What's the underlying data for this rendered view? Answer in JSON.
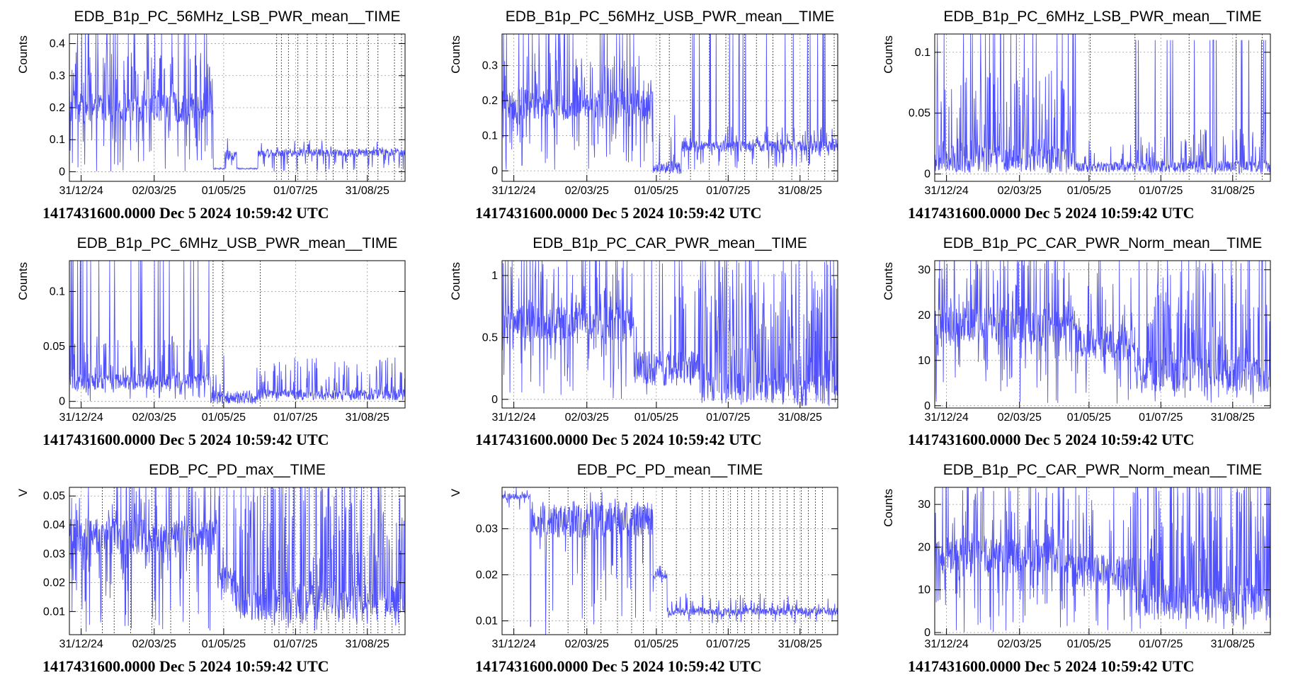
{
  "caption": "1417431600.0000 Dec 5 2024 10:59:42 UTC",
  "date_ticks": [
    "31/12/24",
    "02/03/25",
    "01/05/25",
    "01/07/25",
    "31/08/25"
  ],
  "colors": {
    "series": "#5050ff",
    "grid": "#9a9a9a",
    "vline": "#000000"
  },
  "chart_data": [
    {
      "type": "line",
      "title": "EDB_B1p_PC_56MHz_LSB_PWR_mean__TIME",
      "ylabel": "Counts",
      "ylim": [
        -0.03,
        0.43
      ],
      "yticks": [
        0,
        0.1,
        0.2,
        0.3,
        0.4
      ],
      "ytick_labels": [
        "0",
        "0.1",
        "0.2",
        "0.3",
        "0.4"
      ],
      "x_range_days": [
        -10,
        275
      ],
      "segments": [
        {
          "x": [
            -10,
            112
          ],
          "base": 0.2,
          "lo": 0.0,
          "hi": 0.38,
          "spike": 0.43,
          "dense": 0.8
        },
        {
          "x": [
            112,
            122
          ],
          "base": 0.01,
          "lo": 0.0,
          "hi": 0.02,
          "spike": 0.0,
          "dense": 0.0
        },
        {
          "x": [
            122,
            132
          ],
          "base": 0.05,
          "lo": 0.0,
          "hi": 0.14,
          "spike": 0.0,
          "dense": 0.3
        },
        {
          "x": [
            132,
            150
          ],
          "base": 0.01,
          "lo": 0.0,
          "hi": 0.02,
          "spike": 0.0,
          "dense": 0.0
        },
        {
          "x": [
            150,
            275
          ],
          "base": 0.06,
          "lo": 0.0,
          "hi": 0.1,
          "spike": 0.0,
          "dense": 0.5
        }
      ],
      "vlines_days": [
        166,
        170,
        176,
        184,
        192,
        200,
        208,
        214,
        226,
        234,
        244,
        252,
        266,
        272
      ]
    },
    {
      "type": "line",
      "title": "EDB_B1p_PC_56MHz_USB_PWR_mean__TIME",
      "ylabel": "Counts",
      "ylim": [
        -0.03,
        0.39
      ],
      "yticks": [
        0,
        0.1,
        0.2,
        0.3
      ],
      "ytick_labels": [
        "0",
        "0.1",
        "0.2",
        "0.3"
      ],
      "x_range_days": [
        -10,
        275
      ],
      "segments": [
        {
          "x": [
            -10,
            118
          ],
          "base": 0.19,
          "lo": 0.0,
          "hi": 0.34,
          "spike": 0.39,
          "dense": 0.8
        },
        {
          "x": [
            118,
            142
          ],
          "base": 0.01,
          "lo": 0.0,
          "hi": 0.16,
          "spike": 0.0,
          "dense": 0.2
        },
        {
          "x": [
            142,
            275
          ],
          "base": 0.07,
          "lo": 0.0,
          "hi": 0.13,
          "spike": 0.39,
          "dense": 0.6
        }
      ],
      "vlines_days": [
        124,
        132,
        150,
        166,
        180,
        196,
        206,
        220,
        236,
        250,
        264,
        272
      ]
    },
    {
      "type": "line",
      "title": "EDB_B1p_PC_6MHz_LSB_PWR_mean__TIME",
      "ylabel": "Counts",
      "ylim": [
        -0.006,
        0.115
      ],
      "yticks": [
        0,
        0.05,
        0.1
      ],
      "ytick_labels": [
        "0",
        "0.05",
        "0.1"
      ],
      "x_range_days": [
        -10,
        275
      ],
      "segments": [
        {
          "x": [
            -10,
            110
          ],
          "base": 0.012,
          "lo": 0.0,
          "hi": 0.09,
          "spike": 0.115,
          "dense": 0.7
        },
        {
          "x": [
            110,
            160
          ],
          "base": 0.006,
          "lo": 0.0,
          "hi": 0.035,
          "spike": 0.0,
          "dense": 0.3
        },
        {
          "x": [
            160,
            275
          ],
          "base": 0.006,
          "lo": 0.0,
          "hi": 0.04,
          "spike": 0.11,
          "dense": 0.6
        }
      ],
      "vlines_days": [
        122,
        160,
        206,
        246,
        268
      ]
    },
    {
      "type": "line",
      "title": "EDB_B1p_PC_6MHz_USB_PWR_mean__TIME",
      "ylabel": "Counts",
      "ylim": [
        -0.006,
        0.128
      ],
      "yticks": [
        0,
        0.05,
        0.1
      ],
      "ytick_labels": [
        "0",
        "0.05",
        "0.1"
      ],
      "x_range_days": [
        -10,
        275
      ],
      "segments": [
        {
          "x": [
            -10,
            110
          ],
          "base": 0.018,
          "lo": 0.0,
          "hi": 0.06,
          "spike": 0.128,
          "dense": 0.7
        },
        {
          "x": [
            110,
            150
          ],
          "base": 0.004,
          "lo": 0.0,
          "hi": 0.05,
          "spike": 0.0,
          "dense": 0.2
        },
        {
          "x": [
            150,
            275
          ],
          "base": 0.006,
          "lo": 0.0,
          "hi": 0.04,
          "spike": 0.0,
          "dense": 0.5
        }
      ],
      "vlines_days": [
        112,
        120,
        152
      ]
    },
    {
      "type": "line",
      "title": "EDB_B1p_PC_CAR_PWR_mean__TIME",
      "ylabel": "Counts",
      "ylim": [
        -0.07,
        1.12
      ],
      "yticks": [
        0,
        0.5,
        1
      ],
      "ytick_labels": [
        "0",
        "0.5",
        "1"
      ],
      "x_range_days": [
        -10,
        275
      ],
      "segments": [
        {
          "x": [
            -10,
            102
          ],
          "base": 0.62,
          "lo": 0.0,
          "hi": 1.12,
          "spike": 1.12,
          "dense": 0.8
        },
        {
          "x": [
            102,
            158
          ],
          "base": 0.25,
          "lo": 0.0,
          "hi": 1.12,
          "spike": 1.12,
          "dense": 0.4
        },
        {
          "x": [
            158,
            275
          ],
          "base": 0.08,
          "lo": 0.0,
          "hi": 1.12,
          "spike": 1.12,
          "dense": 0.9
        }
      ],
      "vlines_days": []
    },
    {
      "type": "line",
      "title": "EDB_B1p_PC_CAR_PWR_Norm_mean__TIME",
      "ylabel": "Counts",
      "ylim": [
        -0.5,
        32
      ],
      "yticks": [
        0,
        10,
        20,
        30
      ],
      "ytick_labels": [
        "0",
        "10",
        "20",
        "30"
      ],
      "x_range_days": [
        -10,
        275
      ],
      "segments": [
        {
          "x": [
            -10,
            110
          ],
          "base": 18,
          "lo": 0.0,
          "hi": 32,
          "spike": 32,
          "dense": 0.8
        },
        {
          "x": [
            110,
            160
          ],
          "base": 14,
          "lo": 0.0,
          "hi": 32,
          "spike": 32,
          "dense": 0.4
        },
        {
          "x": [
            160,
            275
          ],
          "base": 7,
          "lo": 0.0,
          "hi": 32,
          "spike": 32,
          "dense": 0.9
        }
      ],
      "vlines_days": []
    },
    {
      "type": "line",
      "title": "EDB_PC_PD_max__TIME",
      "ylabel": "V",
      "ylim": [
        0.002,
        0.053
      ],
      "yticks": [
        0.01,
        0.02,
        0.03,
        0.04,
        0.05
      ],
      "ytick_labels": [
        "0.01",
        "0.02",
        "0.03",
        "0.04",
        "0.05"
      ],
      "x_range_days": [
        -10,
        275
      ],
      "segments": [
        {
          "x": [
            -10,
            116
          ],
          "base": 0.036,
          "lo": 0.003,
          "hi": 0.053,
          "spike": 0.053,
          "dense": 0.6
        },
        {
          "x": [
            116,
            130
          ],
          "base": 0.02,
          "lo": 0.0,
          "hi": 0.053,
          "spike": 0.053,
          "dense": 0.3
        },
        {
          "x": [
            130,
            275
          ],
          "base": 0.013,
          "lo": 0.003,
          "hi": 0.053,
          "spike": 0.053,
          "dense": 0.8
        }
      ],
      "vlines_days": [
        18,
        28,
        42,
        60,
        76,
        92,
        156,
        162,
        168,
        174,
        180,
        186,
        192,
        198,
        204,
        210,
        216,
        222,
        228,
        234,
        240,
        246,
        252,
        258,
        264,
        270
      ]
    },
    {
      "type": "line",
      "title": "EDB_PC_PD_mean__TIME",
      "ylabel": "V",
      "ylim": [
        0.007,
        0.039
      ],
      "yticks": [
        0.01,
        0.02,
        0.03
      ],
      "ytick_labels": [
        "0.01",
        "0.02",
        "0.03"
      ],
      "x_range_days": [
        -10,
        275
      ],
      "segments": [
        {
          "x": [
            -10,
            14
          ],
          "base": 0.037,
          "lo": 0.034,
          "hi": 0.039,
          "spike": 0.0,
          "dense": 0.3
        },
        {
          "x": [
            14,
            118
          ],
          "base": 0.032,
          "lo": 0.007,
          "hi": 0.039,
          "spike": 0.0,
          "dense": 0.3
        },
        {
          "x": [
            118,
            130
          ],
          "base": 0.02,
          "lo": 0.015,
          "hi": 0.022,
          "spike": 0.0,
          "dense": 0.2
        },
        {
          "x": [
            130,
            275
          ],
          "base": 0.012,
          "lo": 0.009,
          "hi": 0.016,
          "spike": 0.0,
          "dense": 0.4
        }
      ],
      "vlines_days": [
        30,
        46,
        60,
        74,
        88,
        100,
        110,
        126,
        138,
        150,
        160,
        166,
        172,
        178,
        184,
        190,
        196,
        202,
        208,
        214,
        220,
        226,
        232,
        238,
        244,
        250,
        256,
        262
      ]
    },
    {
      "type": "line",
      "title": "EDB_B1p_PC_CAR_PWR_Norm_mean__TIME",
      "ylabel": "Counts",
      "ylim": [
        -0.5,
        34
      ],
      "yticks": [
        0,
        10,
        20,
        30
      ],
      "ytick_labels": [
        "0",
        "10",
        "20",
        "30"
      ],
      "x_range_days": [
        -10,
        275
      ],
      "segments": [
        {
          "x": [
            -10,
            110
          ],
          "base": 18,
          "lo": 0.0,
          "hi": 34,
          "spike": 34,
          "dense": 0.8
        },
        {
          "x": [
            110,
            160
          ],
          "base": 14,
          "lo": 0.0,
          "hi": 34,
          "spike": 34,
          "dense": 0.4
        },
        {
          "x": [
            160,
            275
          ],
          "base": 7,
          "lo": 0.0,
          "hi": 34,
          "spike": 34,
          "dense": 0.9
        }
      ],
      "vlines_days": []
    }
  ]
}
